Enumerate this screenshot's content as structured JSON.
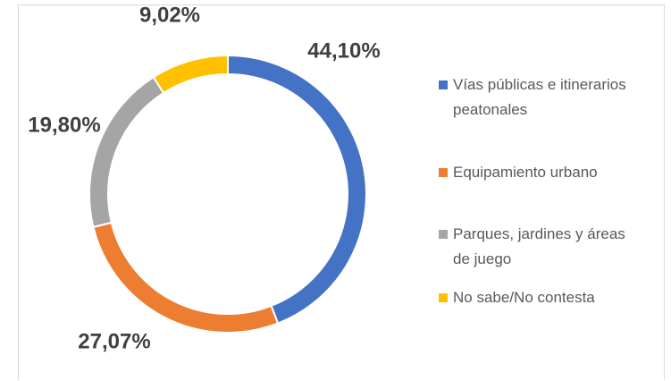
{
  "chart_data": {
    "type": "pie",
    "categories": [
      "Vías públicas e itinerarios peatonales",
      "Equipamiento urbano",
      "Parques, jardines y áreas de juego",
      "No sabe/No contesta"
    ],
    "values": [
      44.1,
      27.07,
      19.8,
      9.02
    ],
    "value_labels": [
      "44,10%",
      "27,07%",
      "19,80%",
      "9,02%"
    ],
    "colors": [
      "#4472c4",
      "#ed7d31",
      "#a5a5a5",
      "#ffc000"
    ],
    "legend": "right"
  }
}
